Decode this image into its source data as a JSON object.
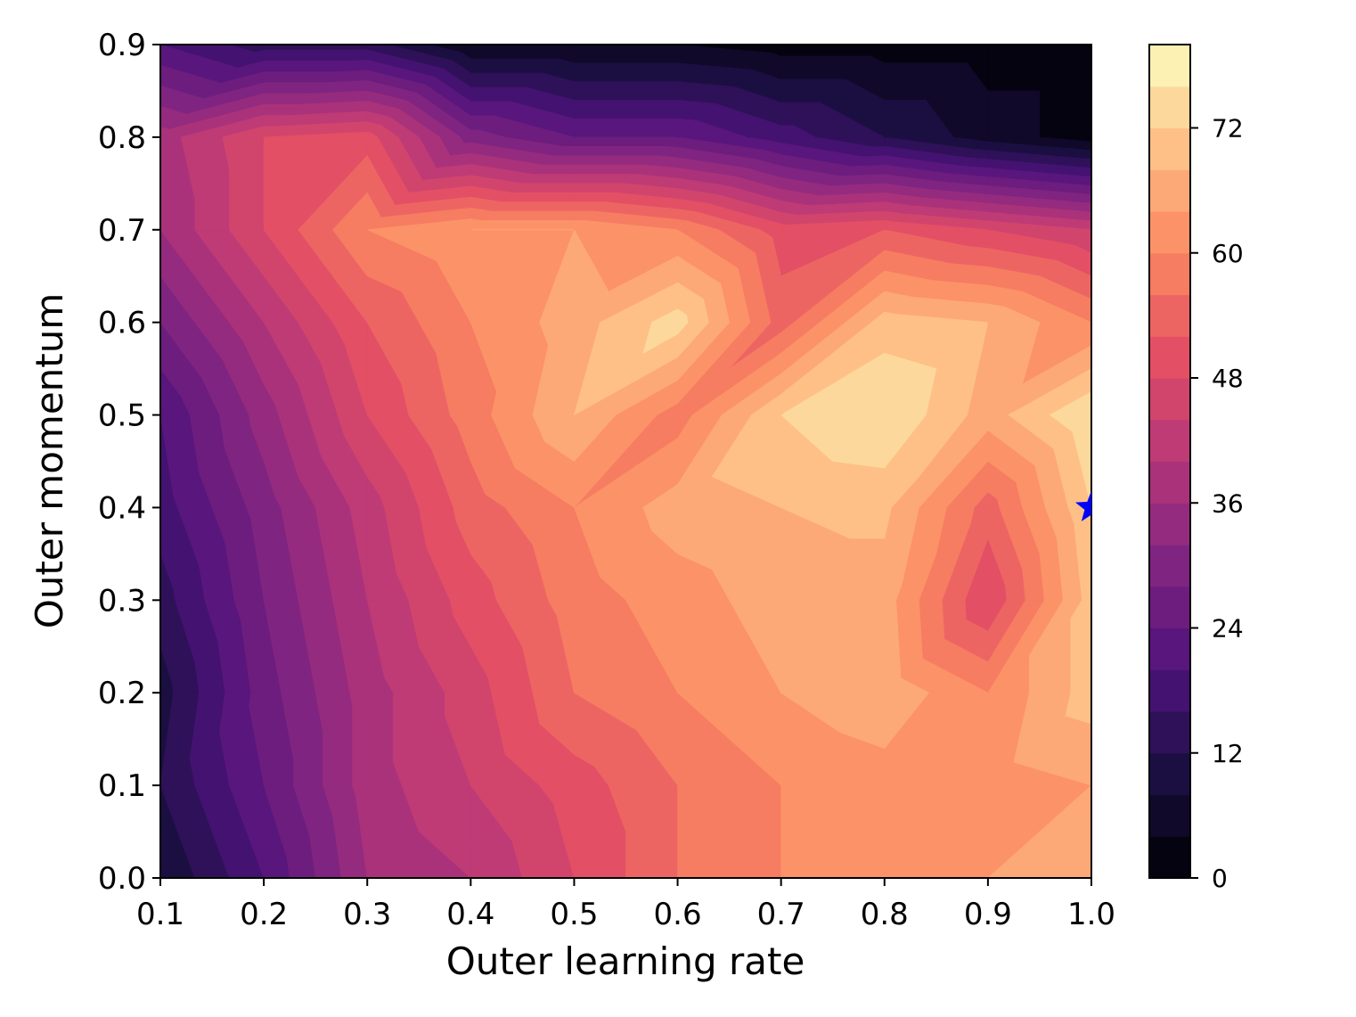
{
  "chart_data": {
    "type": "heatmap",
    "subtype": "filled-contour",
    "colormap": "magma",
    "title": "",
    "xlabel": "Outer learning rate",
    "ylabel": "Outer momentum",
    "xlim": [
      0.1,
      1.0
    ],
    "ylim": [
      0.0,
      0.9
    ],
    "x": [
      0.1,
      0.2,
      0.3,
      0.4,
      0.5,
      0.6,
      0.7,
      0.8,
      0.9,
      1.0
    ],
    "y": [
      0.0,
      0.1,
      0.2,
      0.3,
      0.4,
      0.5,
      0.6,
      0.7,
      0.8,
      0.9
    ],
    "x_tick_labels": [
      "0.1",
      "0.2",
      "0.3",
      "0.4",
      "0.5",
      "0.6",
      "0.7",
      "0.8",
      "0.9",
      "1.0"
    ],
    "y_tick_labels": [
      "0.0",
      "0.1",
      "0.2",
      "0.3",
      "0.4",
      "0.5",
      "0.6",
      "0.7",
      "0.8",
      "0.9"
    ],
    "z": [
      [
        8,
        20,
        36,
        40,
        48,
        56,
        60,
        62,
        64,
        68
      ],
      [
        12,
        24,
        38,
        44,
        50,
        56,
        60,
        62,
        62,
        64
      ],
      [
        10,
        26,
        38,
        46,
        56,
        60,
        64,
        67,
        60,
        70
      ],
      [
        14,
        28,
        40,
        50,
        58,
        62,
        66,
        66,
        48,
        70
      ],
      [
        18,
        30,
        42,
        54,
        60,
        66,
        68,
        69,
        54,
        72
      ],
      [
        20,
        34,
        48,
        58,
        68,
        58,
        72,
        76,
        66,
        76
      ],
      [
        28,
        40,
        52,
        60,
        66,
        74,
        54,
        70,
        68,
        60
      ],
      [
        36,
        48,
        60,
        64,
        64,
        60,
        50,
        52,
        48,
        44
      ],
      [
        38,
        48,
        50,
        30,
        24,
        24,
        18,
        12,
        6,
        2
      ],
      [
        20,
        14,
        14,
        4,
        4,
        4,
        2,
        2,
        2,
        2
      ]
    ],
    "levels": [
      0,
      4,
      8,
      12,
      16,
      20,
      24,
      28,
      32,
      36,
      40,
      44,
      48,
      52,
      56,
      60,
      64,
      68,
      72,
      76,
      80
    ],
    "colorbar": {
      "ticks": [
        0,
        12,
        24,
        36,
        48,
        60,
        72
      ],
      "tick_labels": [
        "0",
        "12",
        "24",
        "36",
        "48",
        "60",
        "72"
      ],
      "range": [
        0,
        80
      ]
    },
    "marker": {
      "shape": "star",
      "x": 1.0,
      "y": 0.4,
      "color": "#0000ff"
    },
    "grid": false,
    "legend": "none"
  }
}
